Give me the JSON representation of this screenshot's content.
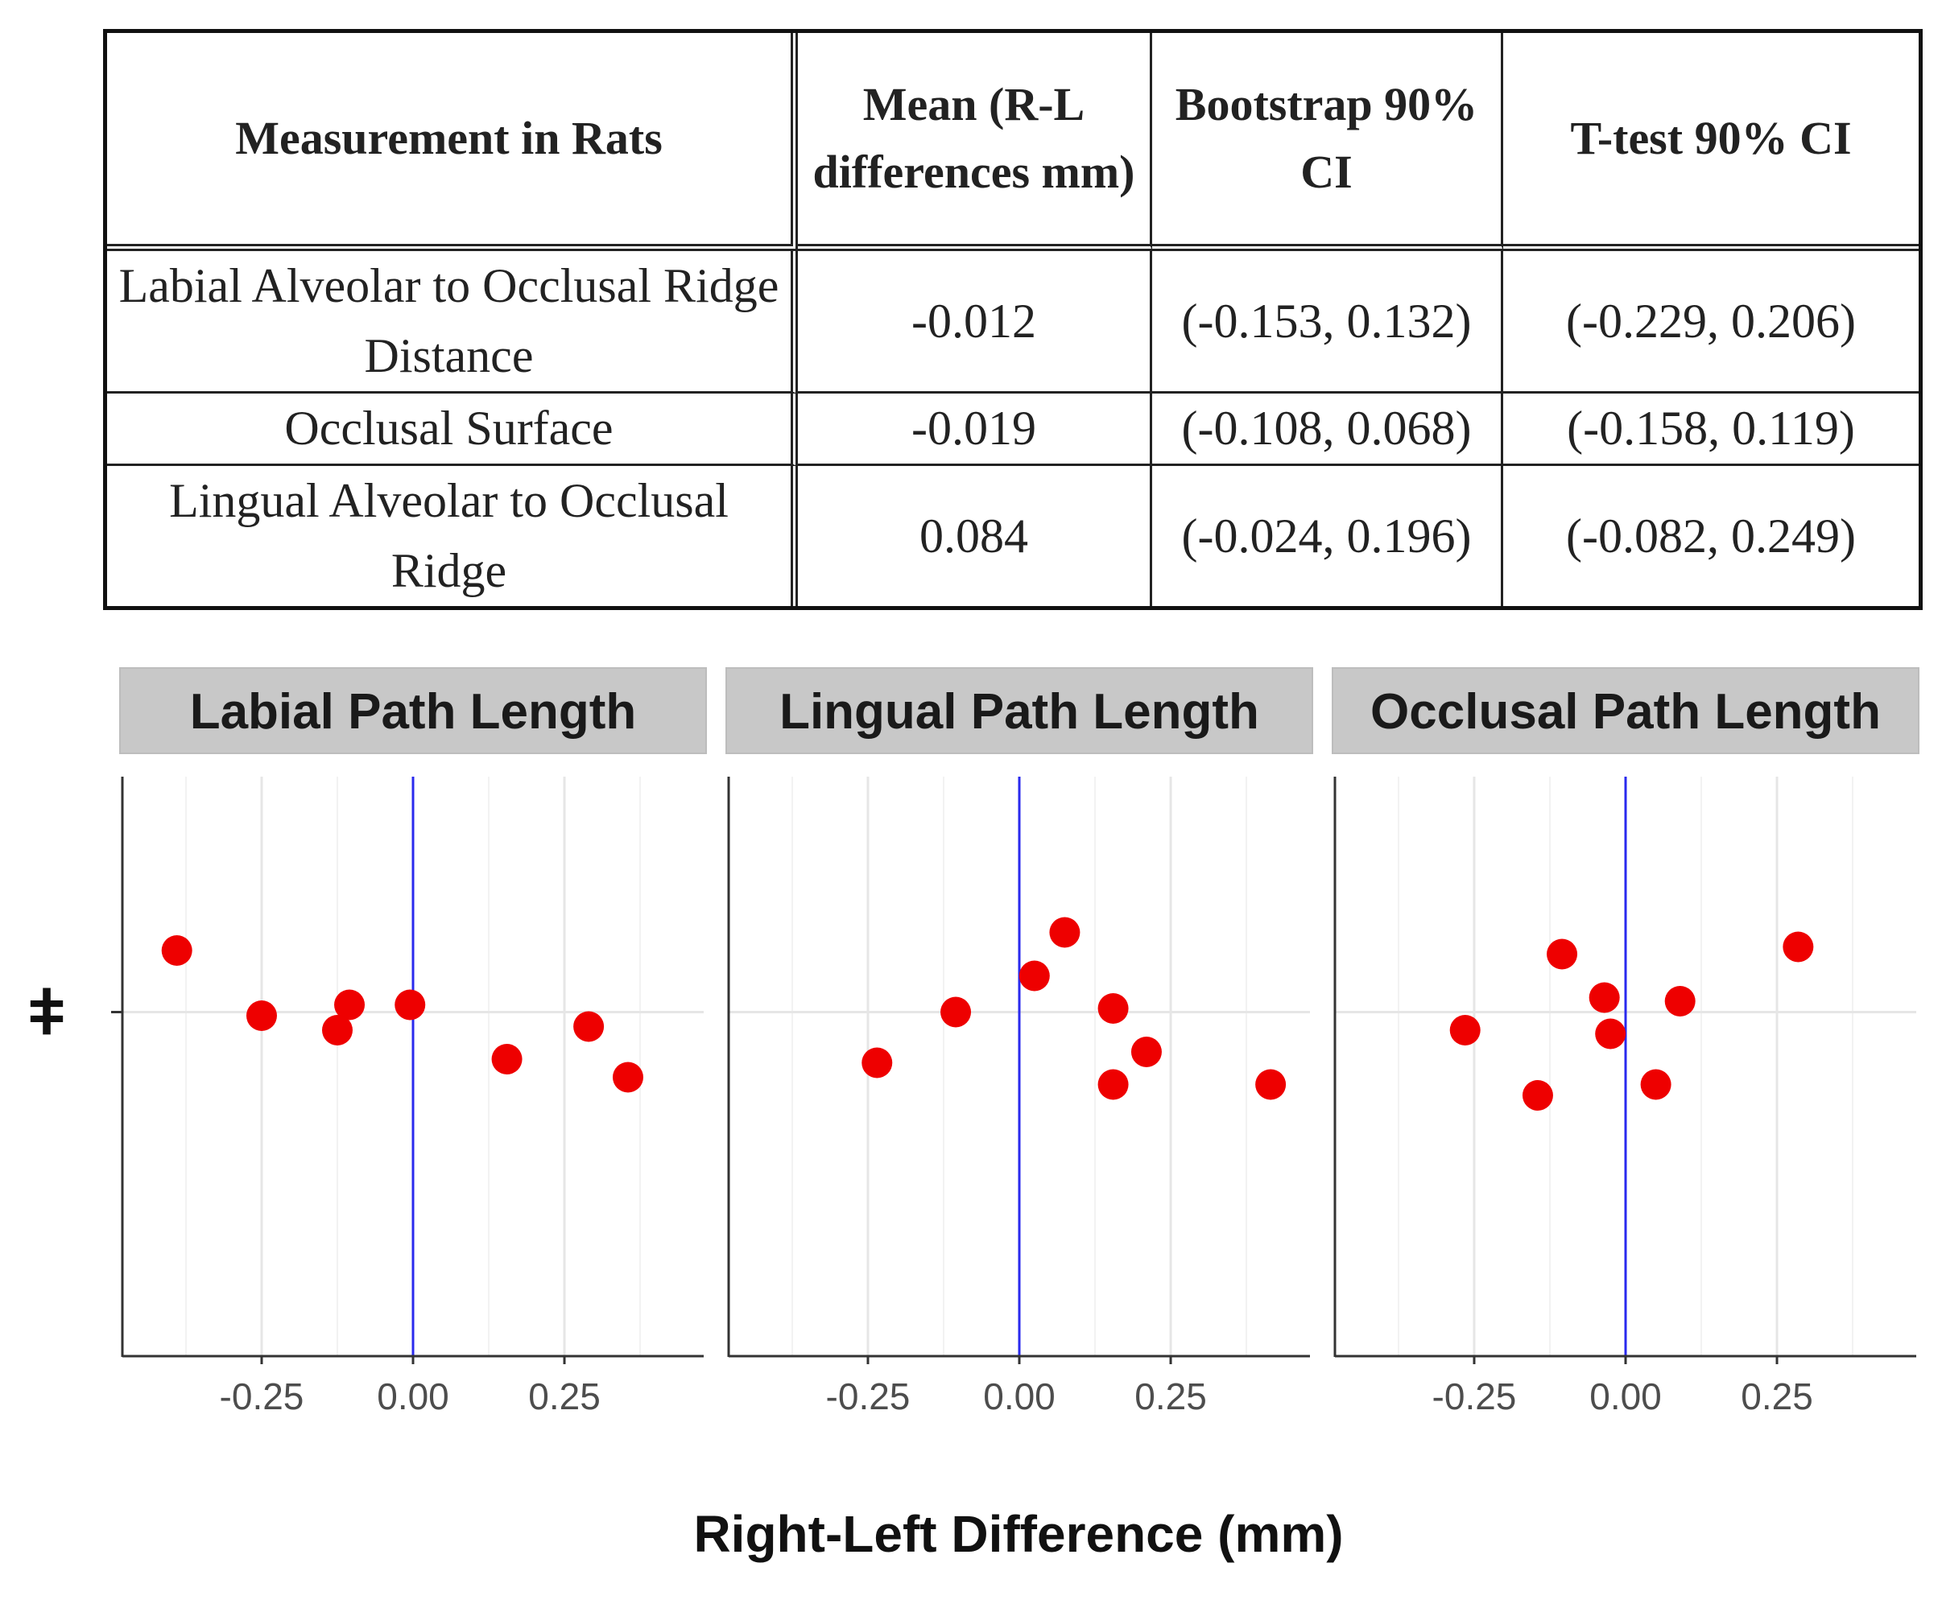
{
  "table": {
    "headers": [
      "Measurement in Rats",
      "Mean (R-L differences mm)",
      "Bootstrap 90% CI",
      "T-test 90% CI"
    ],
    "rows": [
      [
        "Labial Alveolar to Occlusal Ridge Distance",
        "-0.012",
        "(-0.153, 0.132)",
        "(-0.229, 0.206)"
      ],
      [
        "Occlusal Surface",
        "-0.019",
        "(-0.108, 0.068)",
        "(-0.158, 0.119)"
      ],
      [
        "Lingual Alveolar to Occlusal Ridge",
        "0.084",
        "(-0.024, 0.196)",
        "(-0.082, 0.249)"
      ]
    ]
  },
  "chart_data": {
    "type": "scatter",
    "xlabel": "Right-Left Difference (mm)",
    "ylabel": "",
    "y_tick_label": "ǂ",
    "xlim": [
      -0.48,
      0.48
    ],
    "ylim": [
      -0.95,
      0.65
    ],
    "x_ticks": [
      -0.25,
      0,
      0.25
    ],
    "x_tick_labels": [
      "-0.25",
      "0.00",
      "0.25"
    ],
    "reference_line": {
      "x": 0,
      "color": "#2a2aee"
    },
    "point_color": "#ee0000",
    "grid": true,
    "panels": [
      {
        "title": "Labial Path Length",
        "points": [
          {
            "x": -0.39,
            "y": 0.17
          },
          {
            "x": -0.25,
            "y": -0.01
          },
          {
            "x": -0.105,
            "y": 0.02
          },
          {
            "x": -0.125,
            "y": -0.05
          },
          {
            "x": -0.005,
            "y": 0.02
          },
          {
            "x": 0.155,
            "y": -0.13
          },
          {
            "x": 0.29,
            "y": -0.04
          },
          {
            "x": 0.355,
            "y": -0.18
          }
        ]
      },
      {
        "title": "Lingual Path Length",
        "points": [
          {
            "x": -0.235,
            "y": -0.14
          },
          {
            "x": -0.105,
            "y": 0.0
          },
          {
            "x": 0.025,
            "y": 0.1
          },
          {
            "x": 0.075,
            "y": 0.22
          },
          {
            "x": 0.155,
            "y": 0.01
          },
          {
            "x": 0.21,
            "y": -0.11
          },
          {
            "x": 0.155,
            "y": -0.2
          },
          {
            "x": 0.415,
            "y": -0.2
          }
        ]
      },
      {
        "title": "Occlusal Path Length",
        "points": [
          {
            "x": -0.265,
            "y": -0.05
          },
          {
            "x": -0.105,
            "y": 0.16
          },
          {
            "x": -0.145,
            "y": -0.23
          },
          {
            "x": -0.035,
            "y": 0.04
          },
          {
            "x": -0.025,
            "y": -0.06
          },
          {
            "x": 0.05,
            "y": -0.2
          },
          {
            "x": 0.09,
            "y": 0.03
          },
          {
            "x": 0.285,
            "y": 0.18
          }
        ]
      }
    ]
  }
}
